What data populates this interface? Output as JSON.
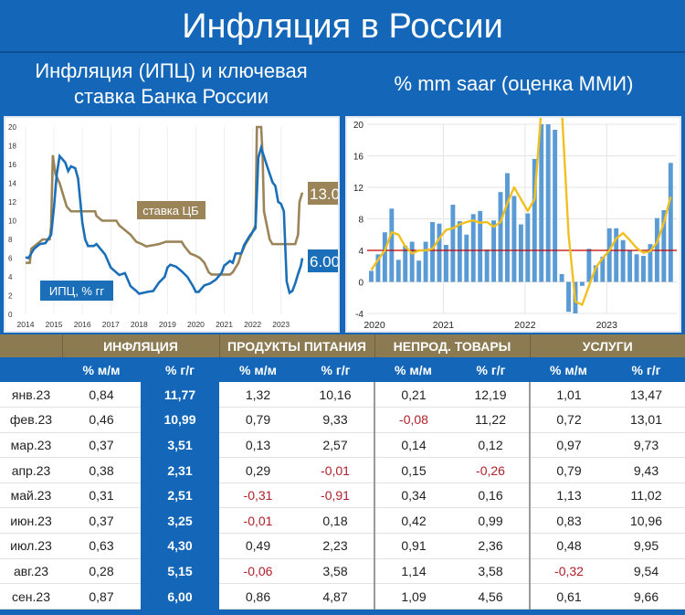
{
  "title": "Инфляция в России",
  "left_subtitle": [
    "Инфляция (ИПЦ) и ключевая",
    "ставка Банка России"
  ],
  "right_subtitle": "% mm saar (оценка ММИ)",
  "colors": {
    "background": "#1467b8",
    "header_brown": "#8c7a52",
    "cpi": "#1a6fb8",
    "key_rate": "#9b8458",
    "bars": "#5b9bd5",
    "smooth": "#f0c020",
    "threshold": "#c00000",
    "negative": "#b0202a"
  },
  "chart_data": [
    {
      "type": "line",
      "ylim": [
        0,
        20
      ],
      "yticks": [
        0,
        2,
        4,
        6,
        8,
        10,
        12,
        14,
        16,
        18,
        20
      ],
      "xticks": [
        "2014",
        "2015",
        "2016",
        "2017",
        "2018",
        "2019",
        "2020",
        "2021",
        "2022",
        "2023"
      ],
      "xlim": [
        2014,
        2023.75
      ],
      "series": [
        {
          "name": "ИПЦ, % гг",
          "end_label": "6.00",
          "points": [
            [
              2014.0,
              6.1
            ],
            [
              2014.1,
              6.0
            ],
            [
              2014.3,
              7.0
            ],
            [
              2014.5,
              7.5
            ],
            [
              2014.7,
              7.6
            ],
            [
              2014.9,
              8.5
            ],
            [
              2015.0,
              11.4
            ],
            [
              2015.1,
              15.0
            ],
            [
              2015.2,
              16.9
            ],
            [
              2015.4,
              16.2
            ],
            [
              2015.5,
              15.3
            ],
            [
              2015.6,
              15.8
            ],
            [
              2015.75,
              15.6
            ],
            [
              2015.85,
              14.5
            ],
            [
              2016.0,
              9.8
            ],
            [
              2016.1,
              8.0
            ],
            [
              2016.2,
              7.3
            ],
            [
              2016.4,
              7.3
            ],
            [
              2016.5,
              7.5
            ],
            [
              2016.8,
              6.4
            ],
            [
              2017.0,
              5.0
            ],
            [
              2017.3,
              4.2
            ],
            [
              2017.5,
              4.4
            ],
            [
              2017.7,
              3.0
            ],
            [
              2017.9,
              2.5
            ],
            [
              2018.0,
              2.2
            ],
            [
              2018.3,
              2.4
            ],
            [
              2018.5,
              2.5
            ],
            [
              2018.7,
              3.4
            ],
            [
              2018.9,
              4.0
            ],
            [
              2019.0,
              5.0
            ],
            [
              2019.1,
              5.3
            ],
            [
              2019.3,
              5.1
            ],
            [
              2019.5,
              4.6
            ],
            [
              2019.7,
              4.0
            ],
            [
              2019.9,
              3.0
            ],
            [
              2020.0,
              2.4
            ],
            [
              2020.1,
              2.4
            ],
            [
              2020.3,
              3.1
            ],
            [
              2020.5,
              3.3
            ],
            [
              2020.7,
              3.7
            ],
            [
              2020.9,
              4.4
            ],
            [
              2021.0,
              5.2
            ],
            [
              2021.2,
              5.7
            ],
            [
              2021.3,
              5.5
            ],
            [
              2021.4,
              6.5
            ],
            [
              2021.6,
              6.5
            ],
            [
              2021.7,
              7.4
            ],
            [
              2021.9,
              8.4
            ],
            [
              2022.1,
              9.2
            ],
            [
              2022.2,
              16.7
            ],
            [
              2022.3,
              17.8
            ],
            [
              2022.5,
              15.9
            ],
            [
              2022.7,
              14.1
            ],
            [
              2022.8,
              13.7
            ],
            [
              2022.9,
              12.0
            ],
            [
              2023.0,
              11.8
            ],
            [
              2023.1,
              11.0
            ],
            [
              2023.2,
              3.5
            ],
            [
              2023.3,
              2.3
            ],
            [
              2023.4,
              2.5
            ],
            [
              2023.5,
              3.3
            ],
            [
              2023.6,
              4.3
            ],
            [
              2023.7,
              5.2
            ],
            [
              2023.75,
              6.0
            ]
          ]
        },
        {
          "name": "ставка ЦБ",
          "end_label": "13.0",
          "points": [
            [
              2014.0,
              5.5
            ],
            [
              2014.15,
              5.5
            ],
            [
              2014.2,
              7.0
            ],
            [
              2014.4,
              7.5
            ],
            [
              2014.6,
              8.0
            ],
            [
              2014.85,
              8.0
            ],
            [
              2014.9,
              9.5
            ],
            [
              2014.96,
              17
            ],
            [
              2015.05,
              15
            ],
            [
              2015.2,
              14
            ],
            [
              2015.35,
              12.5
            ],
            [
              2015.45,
              11.5
            ],
            [
              2015.6,
              11
            ],
            [
              2016.45,
              11
            ],
            [
              2016.5,
              10.5
            ],
            [
              2016.7,
              10.0
            ],
            [
              2017.2,
              10.0
            ],
            [
              2017.3,
              9.5
            ],
            [
              2017.5,
              9.0
            ],
            [
              2017.7,
              8.5
            ],
            [
              2017.9,
              7.75
            ],
            [
              2018.1,
              7.5
            ],
            [
              2018.25,
              7.25
            ],
            [
              2018.7,
              7.5
            ],
            [
              2018.95,
              7.75
            ],
            [
              2019.5,
              7.75
            ],
            [
              2019.6,
              7.25
            ],
            [
              2019.8,
              6.5
            ],
            [
              2020.0,
              6.25
            ],
            [
              2020.15,
              6.0
            ],
            [
              2020.3,
              5.5
            ],
            [
              2020.45,
              4.5
            ],
            [
              2020.55,
              4.25
            ],
            [
              2021.2,
              4.25
            ],
            [
              2021.3,
              4.5
            ],
            [
              2021.4,
              5.0
            ],
            [
              2021.5,
              5.5
            ],
            [
              2021.6,
              6.5
            ],
            [
              2021.75,
              7.5
            ],
            [
              2021.95,
              8.5
            ],
            [
              2022.1,
              9.5
            ],
            [
              2022.15,
              20
            ],
            [
              2022.3,
              20
            ],
            [
              2022.35,
              17
            ],
            [
              2022.4,
              11
            ],
            [
              2022.5,
              9.5
            ],
            [
              2022.6,
              8.0
            ],
            [
              2022.7,
              7.5
            ],
            [
              2023.5,
              7.5
            ],
            [
              2023.6,
              8.5
            ],
            [
              2023.65,
              12
            ],
            [
              2023.75,
              13
            ]
          ]
        }
      ]
    },
    {
      "type": "bar",
      "ylim": [
        -4,
        20
      ],
      "yticks": [
        -4,
        0,
        4,
        8,
        12,
        16,
        20
      ],
      "xticks": [
        "2020",
        "2021",
        "2022",
        "2023"
      ],
      "threshold": 4,
      "bars": [
        1.4,
        3.5,
        6.3,
        9.3,
        2.8,
        4.6,
        5.1,
        2.7,
        5.1,
        7.6,
        7.4,
        4.7,
        9.8,
        7.7,
        6.0,
        8.6,
        9.0,
        4.1,
        7.8,
        11.4,
        13.8,
        10.9,
        7.3,
        8.7,
        15.6,
        30,
        20,
        19.3,
        1.0,
        -3.8,
        -4.0,
        -0.5,
        4.2,
        2.1,
        3.2,
        6.8,
        6.8,
        5.3,
        4.0,
        3.5,
        3.3,
        4.8,
        8.1,
        9.1,
        15.1
      ],
      "smoothed": [
        1.5,
        2.8,
        4.0,
        6.3,
        6.0,
        4.5,
        3.6,
        4.0,
        4.0,
        4.2,
        5.5,
        6.6,
        6.8,
        7.3,
        7.6,
        7.8,
        7.5,
        7.6,
        7.0,
        7.6,
        10,
        12,
        10.5,
        9.0,
        10.5,
        22,
        30,
        30,
        22,
        6,
        -2.5,
        -2.9,
        -0.5,
        1.8,
        3.0,
        4.0,
        5.5,
        6.2,
        5.3,
        4.3,
        3.7,
        3.9,
        5.0,
        7.5,
        10.8
      ]
    }
  ],
  "table": {
    "groups": [
      "ИНФЛЯЦИЯ",
      "ПРОДУКТЫ ПИТАНИЯ",
      "НЕПРОД. ТОВАРЫ",
      "УСЛУГИ"
    ],
    "subheaders": [
      "% м/м",
      "% г/г",
      "% м/м",
      "% г/г",
      "% м/м",
      "% г/г",
      "% м/м",
      "% г/г"
    ],
    "rows": [
      [
        "янв.23",
        "0,84",
        "11,77",
        "1,32",
        "10,16",
        "0,21",
        "12,19",
        "1,01",
        "13,47"
      ],
      [
        "фев.23",
        "0,46",
        "10,99",
        "0,79",
        "9,33",
        "-0,08",
        "11,22",
        "0,72",
        "13,01"
      ],
      [
        "мар.23",
        "0,37",
        "3,51",
        "0,13",
        "2,57",
        "0,14",
        "0,12",
        "0,97",
        "9,73"
      ],
      [
        "апр.23",
        "0,38",
        "2,31",
        "0,29",
        "-0,01",
        "0,15",
        "-0,26",
        "0,79",
        "9,43"
      ],
      [
        "май.23",
        "0,31",
        "2,51",
        "-0,31",
        "-0,91",
        "0,34",
        "0,16",
        "1,13",
        "11,02"
      ],
      [
        "июн.23",
        "0,37",
        "3,25",
        "-0,01",
        "0,18",
        "0,42",
        "0,99",
        "0,83",
        "10,96"
      ],
      [
        "июл.23",
        "0,63",
        "4,30",
        "0,49",
        "2,23",
        "0,91",
        "2,36",
        "0,48",
        "9,95"
      ],
      [
        "авг.23",
        "0,28",
        "5,15",
        "-0,06",
        "3,58",
        "1,14",
        "3,58",
        "-0,32",
        "9,54"
      ],
      [
        "сен.23",
        "0,87",
        "6,00",
        "0,86",
        "4,87",
        "1,09",
        "4,56",
        "0,61",
        "9,66"
      ]
    ]
  }
}
